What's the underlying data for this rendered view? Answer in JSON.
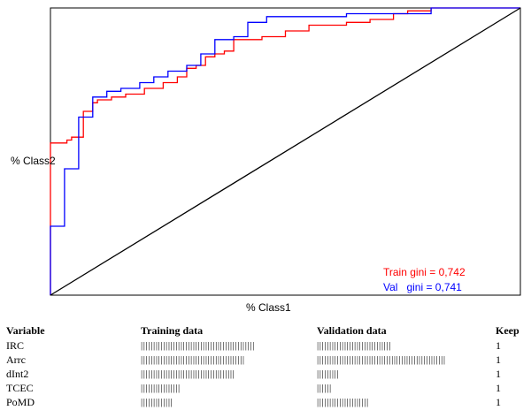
{
  "chart_data": {
    "type": "line",
    "xlabel": "% Class1",
    "ylabel": "% Class2",
    "xlim": [
      0,
      1
    ],
    "ylim": [
      0,
      1
    ],
    "grid": false,
    "series": [
      {
        "name": "Train",
        "color": "#ff0000",
        "x": [
          0,
          0,
          0.035,
          0.035,
          0.045,
          0.045,
          0.07,
          0.07,
          0.09,
          0.09,
          0.1,
          0.1,
          0.13,
          0.13,
          0.16,
          0.16,
          0.2,
          0.2,
          0.24,
          0.24,
          0.27,
          0.27,
          0.29,
          0.29,
          0.31,
          0.31,
          0.33,
          0.33,
          0.35,
          0.35,
          0.37,
          0.37,
          0.39,
          0.39,
          0.45,
          0.45,
          0.5,
          0.5,
          0.55,
          0.55,
          0.63,
          0.63,
          0.68,
          0.68,
          0.73,
          0.73,
          0.76,
          0.76,
          0.81,
          0.81,
          1
        ],
        "y": [
          0,
          0.53,
          0.53,
          0.54,
          0.54,
          0.55,
          0.55,
          0.64,
          0.64,
          0.67,
          0.67,
          0.68,
          0.68,
          0.69,
          0.69,
          0.7,
          0.7,
          0.72,
          0.72,
          0.74,
          0.74,
          0.76,
          0.76,
          0.79,
          0.79,
          0.8,
          0.8,
          0.83,
          0.83,
          0.84,
          0.84,
          0.85,
          0.85,
          0.89,
          0.89,
          0.9,
          0.9,
          0.92,
          0.92,
          0.94,
          0.94,
          0.95,
          0.95,
          0.96,
          0.96,
          0.98,
          0.98,
          0.99,
          0.99,
          1,
          1
        ]
      },
      {
        "name": "Val",
        "color": "#0000ff",
        "x": [
          0,
          0,
          0.03,
          0.03,
          0.06,
          0.06,
          0.09,
          0.09,
          0.12,
          0.12,
          0.15,
          0.15,
          0.19,
          0.19,
          0.22,
          0.22,
          0.25,
          0.25,
          0.29,
          0.29,
          0.32,
          0.32,
          0.35,
          0.35,
          0.39,
          0.39,
          0.42,
          0.42,
          0.46,
          0.46,
          0.55,
          0.55,
          0.63,
          0.63,
          0.81,
          0.81,
          1
        ],
        "y": [
          0,
          0.24,
          0.24,
          0.44,
          0.44,
          0.62,
          0.62,
          0.69,
          0.69,
          0.71,
          0.71,
          0.72,
          0.72,
          0.74,
          0.74,
          0.76,
          0.76,
          0.78,
          0.78,
          0.8,
          0.8,
          0.84,
          0.84,
          0.89,
          0.89,
          0.9,
          0.9,
          0.95,
          0.95,
          0.97,
          0.97,
          0.97,
          0.97,
          0.98,
          0.98,
          1,
          1
        ]
      },
      {
        "name": "",
        "color": "#000000",
        "x": [
          0,
          1
        ],
        "y": [
          0,
          1
        ]
      }
    ],
    "annotations": [
      {
        "text": "Train gini = 0,742",
        "color": "#ff0000"
      },
      {
        "text": "Val   gini = 0,741",
        "color": "#0000ff"
      }
    ]
  },
  "table": {
    "headers": [
      "Variable",
      "Training data",
      "Validation data",
      "Keep"
    ],
    "rows": [
      {
        "variable": "IRC",
        "training": "||||||||||||||||||||||||||||||||||||||||||||||",
        "validation": "||||||||||||||||||||||||||||||",
        "keep": "1"
      },
      {
        "variable": "Arrc",
        "training": "||||||||||||||||||||||||||||||||||||||||||",
        "validation": "||||||||||||||||||||||||||||||||||||||||||||||||||||",
        "keep": "1"
      },
      {
        "variable": "dInt2",
        "training": "||||||||||||||||||||||||||||||||||||||",
        "validation": "|||||||||",
        "keep": "1"
      },
      {
        "variable": "TCEC",
        "training": "||||||||||||||||",
        "validation": "||||||",
        "keep": "1"
      },
      {
        "variable": "PoMD",
        "training": "|||||||||||||",
        "validation": "|||||||||||||||||||||",
        "keep": "1"
      }
    ]
  }
}
